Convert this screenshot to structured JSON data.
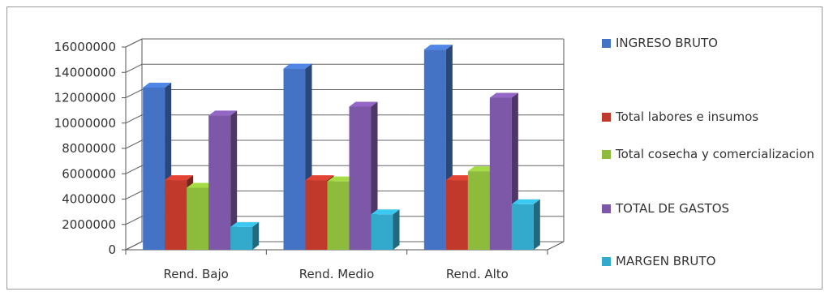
{
  "chart_data": {
    "type": "bar",
    "title": "",
    "xlabel": "",
    "ylabel": "",
    "categories": [
      "Rend. Bajo",
      "Rend. Medio",
      "Rend. Alto"
    ],
    "series": [
      {
        "name": "INGRESO BRUTO",
        "color": "#4472c4",
        "values": [
          12800000,
          14300000,
          15800000
        ]
      },
      {
        "name": "Total labores e insumos",
        "color": "#c0392b",
        "values": [
          5500000,
          5500000,
          5500000
        ]
      },
      {
        "name": "Total cosecha y comercializacion",
        "color": "#8dbb3c",
        "values": [
          4900000,
          5400000,
          6200000
        ]
      },
      {
        "name": "TOTAL DE GASTOS",
        "color": "#7d57a8",
        "values": [
          10600000,
          11300000,
          12000000
        ]
      },
      {
        "name": "MARGEN BRUTO",
        "color": "#33aacc",
        "values": [
          1800000,
          2800000,
          3600000
        ]
      }
    ],
    "ylim": [
      0,
      16000000
    ],
    "yticks": [
      "0",
      "2000000",
      "4000000",
      "6000000",
      "8000000",
      "10000000",
      "12000000",
      "14000000",
      "16000000"
    ],
    "grid": true,
    "legend_position": "right",
    "style": "3d-clustered-column"
  }
}
